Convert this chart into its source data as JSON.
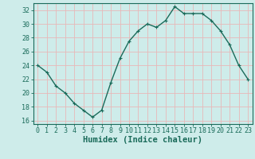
{
  "x": [
    0,
    1,
    2,
    3,
    4,
    5,
    6,
    7,
    8,
    9,
    10,
    11,
    12,
    13,
    14,
    15,
    16,
    17,
    18,
    19,
    20,
    21,
    22,
    23
  ],
  "y": [
    24,
    23,
    21,
    20,
    18.5,
    17.5,
    16.5,
    17.5,
    21.5,
    25,
    27.5,
    29,
    30,
    29.5,
    30.5,
    32.5,
    31.5,
    31.5,
    31.5,
    30.5,
    29,
    27,
    24,
    22
  ],
  "line_color": "#1a6b5a",
  "marker": "+",
  "bg_color": "#ceecea",
  "grid_color": "#e8b8b8",
  "axis_color": "#1a6b5a",
  "xlabel": "Humidex (Indice chaleur)",
  "ylim": [
    15.5,
    33.0
  ],
  "xlim": [
    -0.5,
    23.5
  ],
  "yticks": [
    16,
    18,
    20,
    22,
    24,
    26,
    28,
    30,
    32
  ],
  "xtick_labels": [
    "0",
    "1",
    "2",
    "3",
    "4",
    "5",
    "6",
    "7",
    "8",
    "9",
    "10",
    "11",
    "12",
    "13",
    "14",
    "15",
    "16",
    "17",
    "18",
    "19",
    "20",
    "21",
    "22",
    "23"
  ],
  "font_color": "#1a6b5a",
  "linewidth": 1.0,
  "markersize": 3.5,
  "xlabel_fontsize": 7.5,
  "tick_fontsize": 6.0
}
